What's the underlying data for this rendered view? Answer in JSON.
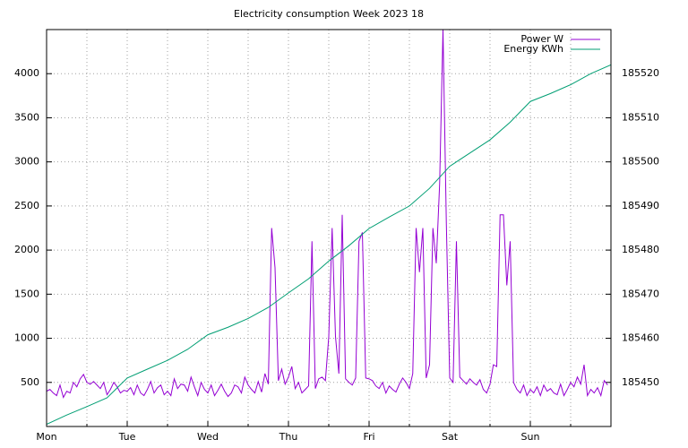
{
  "chart_data": {
    "type": "line",
    "title": "Electricity consumption Week 2023 18",
    "xlim": [
      0,
      168
    ],
    "xticks": [
      {
        "value": 0,
        "label": "Mon"
      },
      {
        "value": 24,
        "label": "Tue"
      },
      {
        "value": 48,
        "label": "Wed"
      },
      {
        "value": 72,
        "label": "Thu"
      },
      {
        "value": 96,
        "label": "Fri"
      },
      {
        "value": 120,
        "label": "Sat"
      },
      {
        "value": 144,
        "label": "Sun"
      }
    ],
    "x_minor_ticks": [
      12,
      36,
      60,
      84,
      108,
      132,
      156
    ],
    "ylim": [
      0,
      4500
    ],
    "yticks": [
      500,
      1000,
      1500,
      2000,
      2500,
      3000,
      3500,
      4000
    ],
    "y2lim": [
      185440,
      185530
    ],
    "y2ticks": [
      185450,
      185460,
      185470,
      185480,
      185490,
      185500,
      185510,
      185520
    ],
    "grid": true,
    "legend": "top-right",
    "series": [
      {
        "name": "Power W",
        "color": "#9400d3",
        "x": [
          0,
          1,
          2,
          3,
          4,
          5,
          6,
          7,
          8,
          9,
          10,
          11,
          12,
          13,
          14,
          15,
          16,
          17,
          18,
          19,
          20,
          21,
          22,
          23,
          24,
          25,
          26,
          27,
          28,
          29,
          30,
          31,
          32,
          33,
          34,
          35,
          36,
          37,
          38,
          39,
          40,
          41,
          42,
          43,
          44,
          45,
          46,
          47,
          48,
          49,
          50,
          51,
          52,
          53,
          54,
          55,
          56,
          57,
          58,
          59,
          60,
          61,
          62,
          63,
          64,
          65,
          66,
          67,
          68,
          69,
          70,
          71,
          72,
          73,
          74,
          75,
          76,
          77,
          78,
          79,
          80,
          81,
          82,
          83,
          84,
          85,
          86,
          87,
          88,
          89,
          90,
          91,
          92,
          93,
          94,
          95,
          96,
          97,
          98,
          99,
          100,
          101,
          102,
          103,
          104,
          105,
          106,
          107,
          108,
          109,
          110,
          111,
          112,
          113,
          114,
          115,
          116,
          117,
          118,
          119,
          120,
          121,
          122,
          123,
          124,
          125,
          126,
          127,
          128,
          129,
          130,
          131,
          132,
          133,
          134,
          135,
          136,
          137,
          138,
          139,
          140,
          141,
          142,
          143,
          144,
          145,
          146,
          147,
          148,
          149,
          150,
          151,
          152,
          153,
          154,
          155,
          156,
          157,
          158,
          159,
          160,
          161,
          162,
          163,
          164,
          165,
          166,
          167
        ],
        "values": [
          400,
          420,
          380,
          350,
          470,
          330,
          400,
          380,
          500,
          450,
          540,
          590,
          500,
          480,
          510,
          470,
          430,
          500,
          360,
          420,
          500,
          450,
          380,
          410,
          400,
          440,
          360,
          470,
          380,
          350,
          420,
          510,
          380,
          440,
          470,
          360,
          400,
          350,
          540,
          430,
          480,
          470,
          400,
          560,
          450,
          350,
          500,
          420,
          380,
          470,
          350,
          410,
          480,
          400,
          340,
          380,
          470,
          450,
          380,
          560,
          470,
          420,
          380,
          510,
          390,
          600,
          480,
          2250,
          1800,
          520,
          650,
          480,
          560,
          680,
          430,
          500,
          380,
          420,
          460,
          2100,
          430,
          540,
          560,
          520,
          1020,
          2250,
          1020,
          600,
          2400,
          540,
          500,
          470,
          550,
          2100,
          2200,
          550,
          540,
          520,
          460,
          430,
          500,
          380,
          460,
          420,
          390,
          480,
          550,
          500,
          430,
          600,
          2250,
          1750,
          2250,
          550,
          700,
          2250,
          1850,
          2750,
          4500,
          2300,
          550,
          500,
          2100,
          560,
          520,
          480,
          540,
          500,
          470,
          530,
          420,
          380,
          480,
          700,
          680,
          2400,
          2400,
          1600,
          2100,
          500,
          420,
          380,
          470,
          350,
          420,
          380,
          450,
          350,
          470,
          400,
          430,
          380,
          360,
          480,
          350,
          420,
          500,
          450,
          560,
          480,
          700,
          350,
          420,
          380,
          440,
          350,
          520,
          470
        ]
      },
      {
        "name": "Energy KWh",
        "color": "#009e73",
        "axis": "y2",
        "x": [
          0,
          6,
          12,
          18,
          24,
          30,
          36,
          42,
          48,
          54,
          60,
          66,
          72,
          78,
          84,
          90,
          96,
          102,
          108,
          114,
          120,
          126,
          132,
          138,
          144,
          150,
          156,
          162,
          168
        ],
        "values": [
          185440.5,
          185442.6,
          185444.5,
          185446.5,
          185451.0,
          185453.0,
          185455.0,
          185457.5,
          185460.8,
          185462.5,
          185464.5,
          185467.0,
          185470.3,
          185473.5,
          185477.5,
          185481.0,
          185484.9,
          185487.5,
          185490.0,
          185494.0,
          185499.0,
          185502.0,
          185505.0,
          185509.0,
          185513.7,
          185515.5,
          185517.5,
          185520.0,
          185522.0
        ]
      }
    ]
  }
}
